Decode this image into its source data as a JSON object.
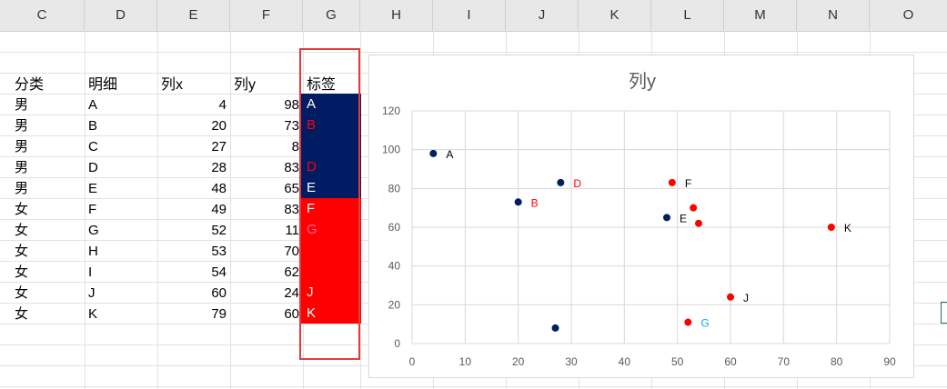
{
  "columns": [
    "C",
    "D",
    "E",
    "F",
    "G",
    "H",
    "I",
    "J",
    "K",
    "L",
    "M",
    "N",
    "O"
  ],
  "table": {
    "headers": {
      "category": "分类",
      "detail": "明细",
      "x": "列x",
      "y": "列y",
      "label": "标签"
    },
    "rows": [
      {
        "category": "男",
        "detail": "A",
        "x": "4",
        "y": "98",
        "label": "A"
      },
      {
        "category": "男",
        "detail": "B",
        "x": "20",
        "y": "73",
        "label": "B"
      },
      {
        "category": "男",
        "detail": "C",
        "x": "27",
        "y": "8",
        "label": ""
      },
      {
        "category": "男",
        "detail": "D",
        "x": "28",
        "y": "83",
        "label": "D"
      },
      {
        "category": "男",
        "detail": "E",
        "x": "48",
        "y": "65",
        "label": "E"
      },
      {
        "category": "女",
        "detail": "F",
        "x": "49",
        "y": "83",
        "label": "F"
      },
      {
        "category": "女",
        "detail": "G",
        "x": "52",
        "y": "11",
        "label": "G"
      },
      {
        "category": "女",
        "detail": "H",
        "x": "53",
        "y": "70",
        "label": ""
      },
      {
        "category": "女",
        "detail": "I",
        "x": "54",
        "y": "62",
        "label": ""
      },
      {
        "category": "女",
        "detail": "J",
        "x": "60",
        "y": "24",
        "label": "J"
      },
      {
        "category": "女",
        "detail": "K",
        "x": "79",
        "y": "60",
        "label": "K"
      }
    ],
    "label_fill_colors": [
      "#001d63",
      "#001d63",
      "#001d63",
      "#001d63",
      "#001d63",
      "#ff0000",
      "#ff0000",
      "#ff0000",
      "#ff0000",
      "#ff0000",
      "#ff0000"
    ],
    "label_text_colors": [
      "#ffffff",
      "#ff0000",
      "#ffffff",
      "#ff0000",
      "#ffffff",
      "#ffffff",
      "#ff6699",
      "#ffffff",
      "#ffffff",
      "#ffffff",
      "#ffffff"
    ]
  },
  "chart_data": {
    "type": "scatter",
    "title": "列y",
    "xlim": [
      0,
      90
    ],
    "ylim": [
      0,
      120
    ],
    "xticks": [
      0,
      10,
      20,
      30,
      40,
      50,
      60,
      70,
      80,
      90
    ],
    "yticks": [
      0,
      20,
      40,
      60,
      80,
      100,
      120
    ],
    "grid": true,
    "points": [
      {
        "x": 4,
        "y": 98,
        "label": "A",
        "color": "#002060",
        "label_color": "#000000"
      },
      {
        "x": 20,
        "y": 73,
        "label": "B",
        "color": "#002060",
        "label_color": "#ff0000"
      },
      {
        "x": 27,
        "y": 8,
        "label": "",
        "color": "#002060",
        "label_color": "#000000"
      },
      {
        "x": 28,
        "y": 83,
        "label": "D",
        "color": "#002060",
        "label_color": "#ff0000"
      },
      {
        "x": 48,
        "y": 65,
        "label": "E",
        "color": "#002060",
        "label_color": "#000000"
      },
      {
        "x": 49,
        "y": 83,
        "label": "F",
        "color": "#ff0000",
        "label_color": "#000000"
      },
      {
        "x": 52,
        "y": 11,
        "label": "G",
        "color": "#ff0000",
        "label_color": "#00b0f0"
      },
      {
        "x": 53,
        "y": 70,
        "label": "",
        "color": "#ff0000",
        "label_color": "#000000"
      },
      {
        "x": 54,
        "y": 62,
        "label": "",
        "color": "#ff0000",
        "label_color": "#000000"
      },
      {
        "x": 60,
        "y": 24,
        "label": "J",
        "color": "#ff0000",
        "label_color": "#000000"
      },
      {
        "x": 79,
        "y": 60,
        "label": "K",
        "color": "#ff0000",
        "label_color": "#000000"
      }
    ]
  }
}
